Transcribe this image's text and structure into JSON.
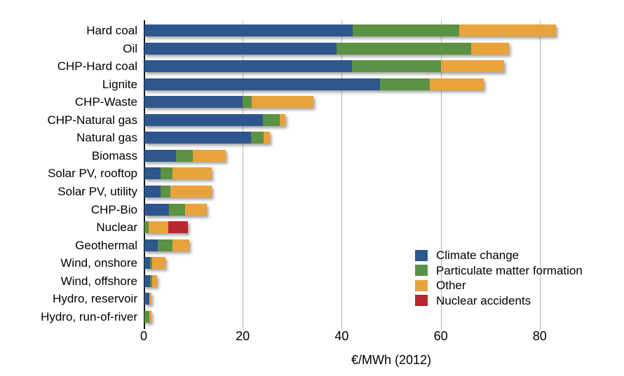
{
  "chart_data": {
    "type": "bar",
    "orientation": "horizontal",
    "stacked": true,
    "xlabel": "€/MWh (2012)",
    "xlim": [
      0,
      95
    ],
    "xticks": [
      0,
      20,
      40,
      60,
      80
    ],
    "tick_labels": [
      "0",
      "20",
      "40",
      "60",
      "80"
    ],
    "grid": "vertical",
    "legend_position": "inside lower right",
    "colors": {
      "climate": "#2F568C",
      "pm": "#5B9245",
      "other": "#E8A33D",
      "nuclear": "#B6282E",
      "gridline": "#b3b3b3",
      "axis": "#141414"
    },
    "legend": [
      {
        "name": "Climate change",
        "color": "#2F568C"
      },
      {
        "name": "Particulate matter formation",
        "color": "#5B9245"
      },
      {
        "name": "Other",
        "color": "#E8A33D"
      },
      {
        "name": "Nuclear accidents",
        "color": "#B6282E"
      }
    ],
    "categories": [
      "Hard coal",
      "Oil",
      "CHP-Hard coal",
      "Lignite",
      "CHP-Waste",
      "CHP-Natural gas",
      "Natural gas",
      "Biomass",
      "Solar PV, rooftop",
      "Solar PV, utility",
      "CHP-Bio",
      "Nuclear",
      "Geothermal",
      "Wind, onshore",
      "Wind, offshore",
      "Hydro, reservoir",
      "Hydro, run-of-river"
    ],
    "series": [
      {
        "name": "Climate change",
        "values": [
          42.0,
          38.8,
          41.9,
          47.6,
          19.9,
          23.9,
          21.6,
          6.4,
          3.2,
          3.2,
          5.0,
          0,
          2.7,
          1.1,
          1.1,
          1.0,
          0
        ]
      },
      {
        "name": "Particulate matter formation",
        "values": [
          21.6,
          27.2,
          18.0,
          10.1,
          1.8,
          3.5,
          2.5,
          3.4,
          2.4,
          2.0,
          3.2,
          0.8,
          2.9,
          0.4,
          0.4,
          0,
          1.0
        ]
      },
      {
        "name": "Other",
        "values": [
          19.6,
          7.7,
          12.8,
          10.8,
          12.5,
          1.1,
          1.3,
          6.6,
          8.0,
          8.4,
          4.4,
          4.0,
          3.5,
          2.8,
          1.0,
          0.45,
          0.45
        ]
      },
      {
        "name": "Nuclear accidents",
        "values": [
          0,
          0,
          0,
          0,
          0,
          0,
          0,
          0,
          0,
          0,
          0,
          4.0,
          0,
          0,
          0,
          0,
          0
        ]
      }
    ],
    "totals": [
      83.2,
      73.7,
      72.7,
      68.5,
      34.2,
      28.5,
      25.4,
      16.4,
      13.6,
      13.6,
      12.6,
      8.8,
      9.1,
      4.3,
      2.5,
      1.45,
      1.45
    ]
  }
}
